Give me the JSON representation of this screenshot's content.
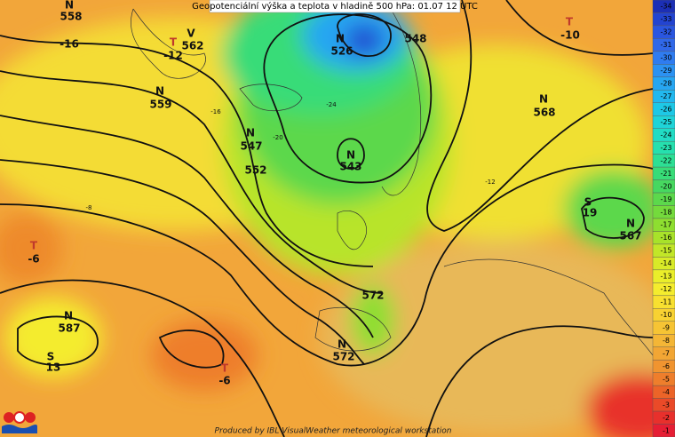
{
  "header": {
    "title": "Geopotenciální výška a teplota v hladině 500 hPa: 01.07 12 UTC"
  },
  "footer": {
    "credit": "Produced by IBL VisualWeather meteorological workstation"
  },
  "map_labels": [
    "N",
    "558",
    "-16",
    "T",
    "-12",
    "V",
    "562",
    "N",
    "559",
    "N",
    "526",
    "548",
    "N",
    "547",
    "552",
    "N",
    "543",
    "T",
    "-10",
    "N",
    "568",
    "T",
    "-6",
    "N",
    "587",
    "S",
    "13",
    "N",
    "572",
    "T",
    "-6",
    "S",
    "19",
    "N",
    "567",
    "572",
    "-24",
    "-20",
    "-16",
    "-12",
    "-8"
  ],
  "colorbar": {
    "values": [
      -34,
      -33,
      -32,
      -31,
      -30,
      -29,
      -28,
      -27,
      -26,
      -25,
      -24,
      -23,
      -22,
      -21,
      -20,
      -19,
      -18,
      -17,
      -16,
      -15,
      -14,
      -13,
      -12,
      -11,
      -10,
      -9,
      -8,
      -7,
      -6,
      -5,
      -4,
      -3,
      -2,
      -1
    ],
    "colors": [
      "#1c2fb5",
      "#2344d0",
      "#2a56e0",
      "#3068e8",
      "#2f7cf0",
      "#2c92f2",
      "#27a6f2",
      "#22b8ee",
      "#1ec8e6",
      "#1fd4d8",
      "#22dcc4",
      "#26e0ae",
      "#2ddf94",
      "#38dc78",
      "#47d860",
      "#5cd84c",
      "#74da3c",
      "#8ede30",
      "#a8e22a",
      "#c2e628",
      "#d8ea28",
      "#eaee2a",
      "#f4ec2e",
      "#f8e030",
      "#f8d232",
      "#f6c434",
      "#f4b636",
      "#f2a634",
      "#f09430",
      "#ee7e2c",
      "#ec6428",
      "#ea4a28",
      "#e8302c",
      "#e61e34"
    ]
  }
}
